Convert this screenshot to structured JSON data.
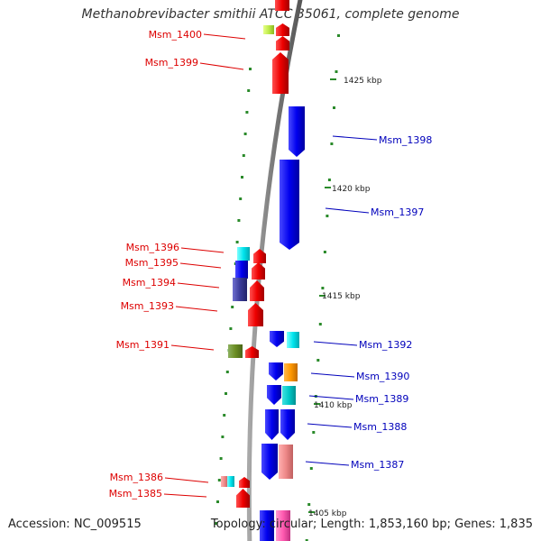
{
  "title": "Methanobrevibacter smithii ATCC 35061, complete genome",
  "footer": {
    "accession": "Accession: NC_009515",
    "summary": "Topology: circular; Length: 1,853,160 bp; Genes: 1,835"
  },
  "colors": {
    "backbone": "#888888",
    "reverse_label": "#dd0000",
    "forward_label": "#0000bb",
    "tick_marks": "#2a8a2a"
  },
  "ticks": [
    "1425 kbp",
    "1420 kbp",
    "1415 kbp",
    "1410 kbp",
    "1405 kbp"
  ],
  "labels": {
    "reverse": [
      "Msm_1400",
      "Msm_1399",
      "Msm_1396",
      "Msm_1395",
      "Msm_1394",
      "Msm_1393",
      "Msm_1391",
      "Msm_1386",
      "Msm_1385"
    ],
    "forward": [
      "Msm_1398",
      "Msm_1397",
      "Msm_1392",
      "Msm_1390",
      "Msm_1389",
      "Msm_1388",
      "Msm_1387"
    ]
  }
}
